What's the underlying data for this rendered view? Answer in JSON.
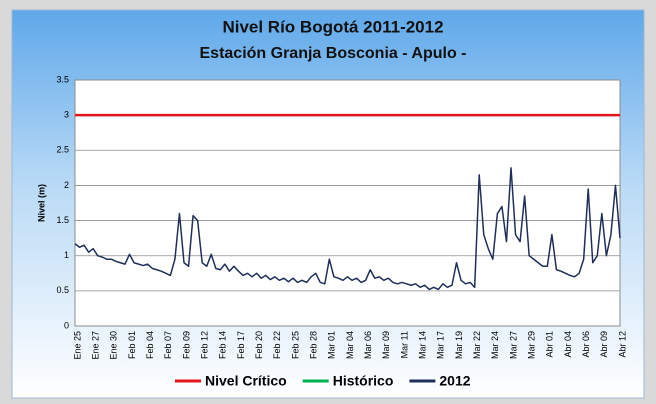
{
  "chart_data": {
    "type": "line",
    "title": "Nivel Río Bogotá 2011-2012",
    "subtitle": "Estación Granja Bosconia - Apulo -",
    "y_label": "Nivel (m)",
    "ylim": [
      0,
      3.5
    ],
    "yticks": [
      0,
      0.5,
      1,
      1.5,
      2,
      2.5,
      3,
      3.5
    ],
    "grid": true,
    "legend": "bottom",
    "categories": [
      "Ene 25",
      null,
      null,
      null,
      "Ene 27",
      null,
      null,
      null,
      "Ene 30",
      null,
      null,
      null,
      "Feb 01",
      null,
      null,
      null,
      "Feb 04",
      null,
      null,
      null,
      "Feb 07",
      null,
      null,
      null,
      "Feb 09",
      null,
      null,
      null,
      "Feb 12",
      null,
      null,
      null,
      "Feb 14",
      null,
      null,
      null,
      "Feb 17",
      null,
      null,
      null,
      "Feb 20",
      null,
      null,
      null,
      "Feb 22",
      null,
      null,
      null,
      "Feb 25",
      null,
      null,
      null,
      "Feb 28",
      null,
      null,
      null,
      "Mar 01",
      null,
      null,
      null,
      "Mar 04",
      null,
      null,
      null,
      "Mar 06",
      null,
      null,
      null,
      "Mar 09",
      null,
      null,
      null,
      "Mar 11",
      null,
      null,
      null,
      "Mar 14",
      null,
      null,
      null,
      "Mar 17",
      null,
      null,
      null,
      "Mar 19",
      null,
      null,
      null,
      "Mar 22",
      null,
      null,
      null,
      "Mar 24",
      null,
      null,
      null,
      "Mar 27",
      null,
      null,
      null,
      "Mar 29",
      null,
      null,
      null,
      "Abr 01",
      null,
      null,
      null,
      "Abr 04",
      null,
      null,
      null,
      "Abr 06",
      null,
      null,
      null,
      "Abr 09",
      null,
      null,
      null,
      "Abr 12"
    ],
    "series": [
      {
        "name": "Nivel Crítico",
        "color": "#e3141c",
        "width": 2.5,
        "values": [
          3,
          3,
          3,
          3,
          3,
          3,
          3,
          3,
          3,
          3,
          3,
          3,
          3,
          3,
          3,
          3,
          3,
          3,
          3,
          3,
          3,
          3,
          3,
          3,
          3,
          3,
          3,
          3,
          3,
          3,
          3,
          3,
          3,
          3,
          3,
          3,
          3,
          3,
          3,
          3,
          3,
          3,
          3,
          3,
          3,
          3,
          3,
          3,
          3,
          3,
          3,
          3,
          3,
          3,
          3,
          3,
          3,
          3,
          3,
          3,
          3,
          3,
          3,
          3,
          3,
          3,
          3,
          3,
          3,
          3,
          3,
          3,
          3,
          3,
          3,
          3,
          3,
          3,
          3,
          3,
          3,
          3,
          3,
          3,
          3,
          3,
          3,
          3,
          3,
          3,
          3,
          3,
          3,
          3,
          3,
          3,
          3,
          3,
          3,
          3,
          3,
          3,
          3,
          3,
          3,
          3,
          3,
          3,
          3,
          3,
          3,
          3,
          3,
          3,
          3,
          3,
          3,
          3,
          3,
          3,
          3
        ]
      },
      {
        "name": "Histórico",
        "color": "#00b050",
        "width": 2,
        "values": [
          null,
          null,
          null,
          null,
          null,
          null,
          null,
          null,
          null,
          null,
          null,
          null,
          null,
          null,
          null,
          null,
          null,
          null,
          null,
          null,
          null,
          null,
          null,
          null,
          null,
          null,
          null,
          null,
          null,
          null,
          null,
          null,
          null,
          null,
          null,
          null,
          null,
          null,
          null,
          null,
          null,
          null,
          null,
          null,
          null,
          null,
          null,
          null,
          null,
          null,
          null,
          null,
          null,
          null,
          null,
          null,
          null,
          null,
          null,
          null,
          null,
          null,
          null,
          null,
          null,
          null,
          null,
          null,
          null,
          null,
          null,
          null,
          null,
          null,
          null,
          null,
          null,
          null,
          null,
          null,
          null,
          null,
          null,
          null,
          null,
          null,
          null,
          null,
          null,
          null,
          null,
          null,
          null,
          null,
          null,
          null,
          null,
          null,
          null,
          null,
          null,
          null,
          null,
          null,
          null,
          null,
          null,
          null,
          null,
          null,
          null,
          null,
          null,
          null,
          null,
          null,
          null,
          null,
          null,
          null,
          null
        ]
      },
      {
        "name": "2012",
        "color": "#1f2f5a",
        "width": 1.5,
        "values": [
          1.17,
          1.12,
          1.15,
          1.05,
          1.1,
          1.0,
          0.98,
          0.95,
          0.95,
          0.92,
          0.9,
          0.88,
          1.02,
          0.9,
          0.88,
          0.86,
          0.88,
          0.82,
          0.8,
          0.78,
          0.75,
          0.72,
          0.95,
          1.6,
          0.9,
          0.85,
          1.57,
          1.5,
          0.9,
          0.85,
          1.02,
          0.82,
          0.8,
          0.88,
          0.78,
          0.85,
          0.78,
          0.72,
          0.75,
          0.7,
          0.75,
          0.68,
          0.72,
          0.66,
          0.7,
          0.65,
          0.68,
          0.63,
          0.68,
          0.62,
          0.65,
          0.62,
          0.7,
          0.75,
          0.62,
          0.6,
          0.95,
          0.7,
          0.68,
          0.65,
          0.7,
          0.65,
          0.68,
          0.62,
          0.65,
          0.8,
          0.68,
          0.7,
          0.65,
          0.68,
          0.62,
          0.6,
          0.62,
          0.6,
          0.58,
          0.6,
          0.55,
          0.58,
          0.52,
          0.55,
          0.52,
          0.6,
          0.55,
          0.58,
          0.9,
          0.65,
          0.6,
          0.62,
          0.55,
          2.15,
          1.3,
          1.1,
          0.95,
          1.6,
          1.7,
          1.2,
          2.25,
          1.3,
          1.2,
          1.85,
          1.0,
          0.95,
          0.9,
          0.85,
          0.85,
          1.3,
          0.8,
          0.78,
          0.75,
          0.72,
          0.7,
          0.75,
          0.95,
          1.95,
          0.9,
          1.0,
          1.6,
          1.0,
          1.3,
          2.0,
          1.25
        ]
      }
    ]
  }
}
